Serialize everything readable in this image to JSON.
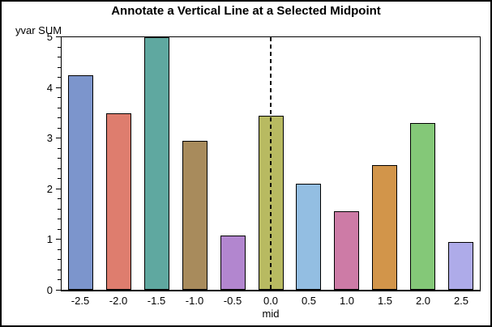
{
  "title": "Annotate a Vertical Line at a Selected Midpoint",
  "chart_data": {
    "type": "bar",
    "title": "Annotate a Vertical Line at a Selected Midpoint",
    "xlabel": "mid",
    "ylabel": "yvar SUM",
    "categories": [
      "-2.5",
      "-2.0",
      "-1.5",
      "-1.0",
      "-0.5",
      "0.0",
      "0.5",
      "1.0",
      "1.5",
      "2.0",
      "2.5"
    ],
    "values": [
      4.25,
      3.5,
      5.0,
      2.95,
      1.08,
      3.45,
      2.1,
      1.55,
      2.47,
      3.3,
      0.95
    ],
    "bar_colors": [
      "#7c95cc",
      "#de7d6e",
      "#5fa8a0",
      "#a88b5c",
      "#b286cf",
      "#b8ba61",
      "#93bee2",
      "#cd7ba6",
      "#d2954a",
      "#84c878",
      "#aeabe9"
    ],
    "ylim": [
      0,
      5
    ],
    "yticks": [
      0,
      1,
      2,
      3,
      4,
      5
    ],
    "minor_ticks_per_interval": 4,
    "grid": false,
    "legend": "none",
    "bar_border_color": "#000000",
    "axis_color": "#000000",
    "annotation": {
      "type": "vertical-dashed-line",
      "at_category": "0.0",
      "color": "#000000"
    }
  }
}
